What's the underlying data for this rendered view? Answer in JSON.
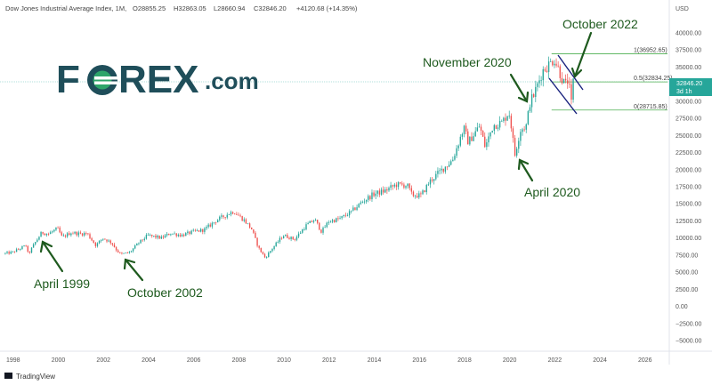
{
  "header": {
    "title": "Dow Jones Industrial Average Index, 1M,",
    "open": "O28855.25",
    "high": "H32863.05",
    "low": "L28660.94",
    "close": "C32846.20",
    "change": "+4120.68 (+14.35%)"
  },
  "logo": {
    "main": "FOREX",
    "suffix": ".com"
  },
  "footer": {
    "brand": "TradingView"
  },
  "price_badge": {
    "value": "32846.20",
    "sub": "3d 1h"
  },
  "currency": "USD",
  "colors": {
    "up": "#26a69a",
    "down": "#ef5350",
    "annotation": "#1e5a1e",
    "channel": "#1a237e",
    "fib": "#4caf50",
    "logo": "#1f4e5a",
    "logo_accent": "#2ea56a"
  },
  "annotations": [
    {
      "id": "april-1999",
      "label": "April 1999"
    },
    {
      "id": "october-2002",
      "label": "October 2002"
    },
    {
      "id": "april-2020",
      "label": "April 2020"
    },
    {
      "id": "november-2020",
      "label": "November 2020"
    },
    {
      "id": "october-2022",
      "label": "October 2022"
    }
  ],
  "fib_levels": [
    {
      "ratio": "1",
      "value": 36952.65,
      "label": "1(36952.65)"
    },
    {
      "ratio": "0.5",
      "value": 32834.25,
      "label": "0.5(32834.25)"
    },
    {
      "ratio": "0",
      "value": 28715.85,
      "label": "0(28715.85)"
    }
  ],
  "chart_data": {
    "type": "candlestick",
    "title": "Dow Jones Industrial Average Index, 1M,",
    "ylim": [
      -6250,
      42500
    ],
    "xlim": [
      1997.6,
      2027.7
    ],
    "y_ticks": [
      -5000,
      -2500,
      0,
      2500,
      5000,
      7500,
      10000,
      12500,
      15000,
      17500,
      20000,
      22500,
      25000,
      27500,
      30000,
      32500,
      35000,
      37500,
      40000
    ],
    "y_tick_labels": [
      "−5000.00",
      "−2500.00",
      "0.00",
      "2500.00",
      "5000.00",
      "7500.00",
      "10000.00",
      "12500.00",
      "15000.00",
      "17500.00",
      "20000.00",
      "22500.00",
      "25000.00",
      "27500.00",
      "30000.00",
      "32500.00",
      "35000.00",
      "37500.00",
      "40000.00"
    ],
    "x_ticks": [
      1998,
      2000,
      2002,
      2004,
      2006,
      2008,
      2010,
      2012,
      2014,
      2016,
      2018,
      2020,
      2022,
      2024,
      2026
    ],
    "x_tick_labels": [
      "1998",
      "2000",
      "2002",
      "2004",
      "2006",
      "2008",
      "2010",
      "2012",
      "2014",
      "2016",
      "2018",
      "2020",
      "2022",
      "2024",
      "2026"
    ],
    "last_price": 32846.2,
    "path": [
      [
        1997.6,
        7700
      ],
      [
        1998.0,
        7900
      ],
      [
        1998.6,
        8900
      ],
      [
        1998.7,
        7600
      ],
      [
        1999.0,
        9300
      ],
      [
        1999.3,
        10800
      ],
      [
        1999.6,
        10600
      ],
      [
        2000.0,
        11400
      ],
      [
        2000.2,
        10100
      ],
      [
        2000.6,
        10800
      ],
      [
        2001.0,
        10600
      ],
      [
        2001.3,
        10700
      ],
      [
        2001.7,
        8900
      ],
      [
        2002.0,
        10000
      ],
      [
        2002.4,
        9300
      ],
      [
        2002.6,
        8300
      ],
      [
        2002.8,
        7600
      ],
      [
        2003.2,
        7900
      ],
      [
        2003.6,
        9300
      ],
      [
        2004.0,
        10400
      ],
      [
        2004.6,
        10000
      ],
      [
        2005.0,
        10700
      ],
      [
        2005.5,
        10400
      ],
      [
        2006.0,
        10900
      ],
      [
        2006.5,
        11200
      ],
      [
        2007.0,
        12500
      ],
      [
        2007.6,
        13600
      ],
      [
        2007.8,
        13900
      ],
      [
        2008.3,
        12500
      ],
      [
        2008.6,
        11300
      ],
      [
        2008.9,
        8600
      ],
      [
        2009.2,
        7100
      ],
      [
        2009.5,
        8400
      ],
      [
        2010.0,
        10400
      ],
      [
        2010.5,
        9800
      ],
      [
        2011.0,
        11800
      ],
      [
        2011.4,
        12700
      ],
      [
        2011.7,
        10900
      ],
      [
        2012.0,
        12400
      ],
      [
        2012.5,
        12800
      ],
      [
        2013.0,
        13800
      ],
      [
        2013.5,
        15300
      ],
      [
        2014.0,
        16400
      ],
      [
        2014.5,
        16900
      ],
      [
        2015.0,
        17800
      ],
      [
        2015.5,
        17700
      ],
      [
        2015.7,
        16300
      ],
      [
        2016.1,
        16200
      ],
      [
        2016.5,
        18300
      ],
      [
        2017.0,
        19900
      ],
      [
        2017.5,
        21400
      ],
      [
        2018.0,
        26100
      ],
      [
        2018.2,
        24000
      ],
      [
        2018.7,
        26400
      ],
      [
        2018.95,
        23300
      ],
      [
        2019.3,
        26500
      ],
      [
        2019.7,
        26900
      ],
      [
        2020.0,
        28500
      ],
      [
        2020.15,
        25400
      ],
      [
        2020.25,
        21900
      ],
      [
        2020.5,
        25800
      ],
      [
        2020.8,
        26500
      ],
      [
        2020.9,
        29600
      ],
      [
        2021.1,
        30900
      ],
      [
        2021.5,
        34500
      ],
      [
        2021.9,
        35800
      ],
      [
        2022.0,
        36300
      ],
      [
        2022.2,
        34700
      ],
      [
        2022.4,
        32900
      ],
      [
        2022.5,
        32300
      ],
      [
        2022.6,
        33000
      ],
      [
        2022.7,
        31500
      ],
      [
        2022.75,
        28800
      ],
      [
        2022.83,
        32846
      ]
    ]
  }
}
